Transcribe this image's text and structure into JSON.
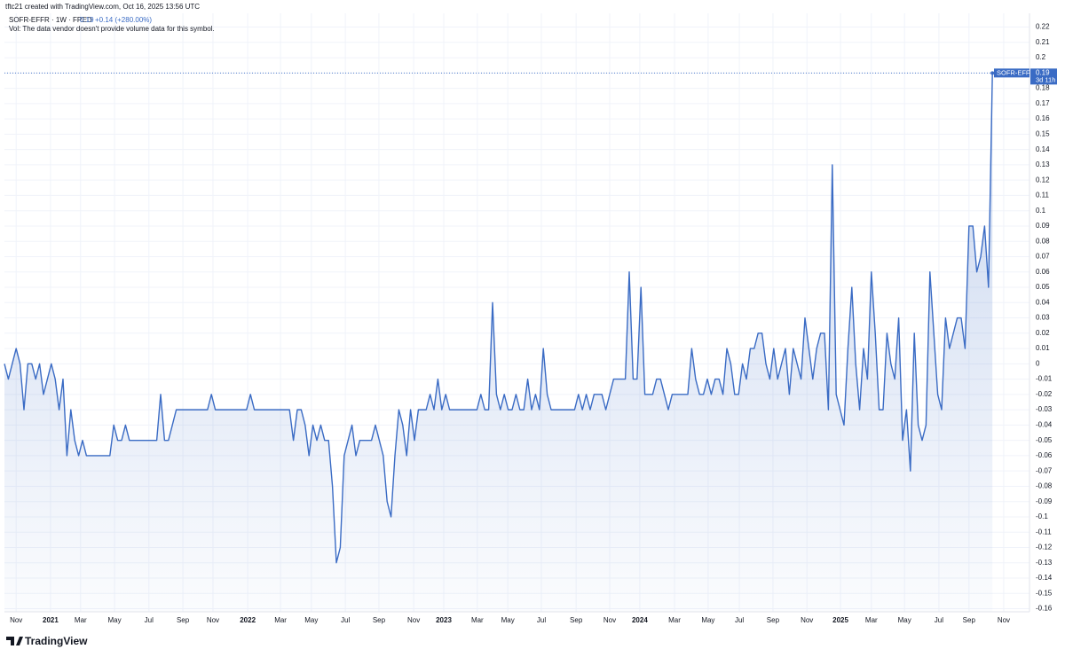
{
  "chart_data": {
    "type": "line",
    "attribution": "tftc21 created with TradingView.com, Oct 16, 2025 13:56 UTC",
    "title": "SOFR-EFFR · 1W · FRED",
    "change": "+0.14 (+280.00%)",
    "note": "Vol: The data vendor doesn't provide volume data for this symbol.",
    "symbol": "SOFR-EFFR",
    "countdown": "3d 11h",
    "brand": "TradingView",
    "color": "#3a6bc4",
    "grid": true,
    "values": [
      0,
      -0.01,
      0,
      0.01,
      0,
      -0.03,
      0,
      0,
      -0.01,
      0,
      -0.02,
      -0.01,
      0,
      -0.01,
      -0.03,
      -0.01,
      -0.06,
      -0.03,
      -0.05,
      -0.06,
      -0.05,
      -0.06,
      -0.06,
      -0.06,
      -0.06,
      -0.06,
      -0.06,
      -0.06,
      -0.04,
      -0.05,
      -0.05,
      -0.04,
      -0.05,
      -0.05,
      -0.05,
      -0.05,
      -0.05,
      -0.05,
      -0.05,
      -0.05,
      -0.02,
      -0.05,
      -0.05,
      -0.04,
      -0.03,
      -0.03,
      -0.03,
      -0.03,
      -0.03,
      -0.03,
      -0.03,
      -0.03,
      -0.03,
      -0.02,
      -0.03,
      -0.03,
      -0.03,
      -0.03,
      -0.03,
      -0.03,
      -0.03,
      -0.03,
      -0.03,
      -0.02,
      -0.03,
      -0.03,
      -0.03,
      -0.03,
      -0.03,
      -0.03,
      -0.03,
      -0.03,
      -0.03,
      -0.03,
      -0.05,
      -0.03,
      -0.03,
      -0.04,
      -0.06,
      -0.04,
      -0.05,
      -0.04,
      -0.05,
      -0.05,
      -0.08,
      -0.13,
      -0.12,
      -0.06,
      -0.05,
      -0.04,
      -0.06,
      -0.05,
      -0.05,
      -0.05,
      -0.05,
      -0.04,
      -0.05,
      -0.06,
      -0.09,
      -0.1,
      -0.06,
      -0.03,
      -0.04,
      -0.06,
      -0.03,
      -0.05,
      -0.03,
      -0.03,
      -0.03,
      -0.02,
      -0.03,
      -0.01,
      -0.03,
      -0.02,
      -0.03,
      -0.03,
      -0.03,
      -0.03,
      -0.03,
      -0.03,
      -0.03,
      -0.03,
      -0.02,
      -0.03,
      -0.03,
      0.04,
      -0.02,
      -0.03,
      -0.02,
      -0.03,
      -0.03,
      -0.02,
      -0.03,
      -0.03,
      -0.01,
      -0.03,
      -0.02,
      -0.03,
      0.01,
      -0.02,
      -0.03,
      -0.03,
      -0.03,
      -0.03,
      -0.03,
      -0.03,
      -0.03,
      -0.02,
      -0.03,
      -0.02,
      -0.03,
      -0.02,
      -0.02,
      -0.02,
      -0.03,
      -0.02,
      -0.01,
      -0.01,
      -0.01,
      -0.01,
      0.06,
      -0.01,
      -0.01,
      0.05,
      -0.02,
      -0.02,
      -0.02,
      -0.01,
      -0.01,
      -0.02,
      -0.03,
      -0.02,
      -0.02,
      -0.02,
      -0.02,
      -0.02,
      0.01,
      -0.01,
      -0.02,
      -0.02,
      -0.01,
      -0.02,
      -0.01,
      -0.01,
      -0.02,
      0.01,
      0,
      -0.02,
      -0.02,
      0,
      -0.01,
      0.01,
      0.01,
      0.02,
      0.02,
      0,
      -0.01,
      0.01,
      -0.01,
      0,
      0.01,
      -0.02,
      0.01,
      0,
      -0.01,
      0.03,
      0.01,
      -0.01,
      0.01,
      0.02,
      0.02,
      -0.03,
      0.13,
      -0.02,
      -0.03,
      -0.04,
      0.01,
      0.05,
      0,
      -0.03,
      0.01,
      -0.01,
      0.06,
      0.02,
      -0.03,
      -0.03,
      0.02,
      0,
      -0.01,
      0.03,
      -0.05,
      -0.03,
      -0.07,
      0.02,
      -0.04,
      -0.05,
      -0.04,
      0.06,
      0.02,
      -0.02,
      -0.03,
      0.03,
      0.01,
      0.02,
      0.03,
      0.03,
      0.01,
      0.09,
      0.09,
      0.06,
      0.07,
      0.09,
      0.05,
      0.19
    ],
    "xlim": [
      0,
      262.5
    ],
    "xticks": [
      {
        "value": 3,
        "label": "Nov"
      },
      {
        "value": 11.8,
        "label": "2021"
      },
      {
        "value": 19.5,
        "label": "Mar"
      },
      {
        "value": 28.2,
        "label": "May"
      },
      {
        "value": 37,
        "label": "Jul"
      },
      {
        "value": 45.7,
        "label": "Sep"
      },
      {
        "value": 53.4,
        "label": "Nov"
      },
      {
        "value": 62.3,
        "label": "2022"
      },
      {
        "value": 70.7,
        "label": "Mar"
      },
      {
        "value": 78.6,
        "label": "May"
      },
      {
        "value": 87.3,
        "label": "Jul"
      },
      {
        "value": 95.9,
        "label": "Sep"
      },
      {
        "value": 104.8,
        "label": "Nov"
      },
      {
        "value": 112.5,
        "label": "2023"
      },
      {
        "value": 121.1,
        "label": "Mar"
      },
      {
        "value": 128.9,
        "label": "May"
      },
      {
        "value": 137.5,
        "label": "Jul"
      },
      {
        "value": 146.4,
        "label": "Sep"
      },
      {
        "value": 155,
        "label": "Nov"
      },
      {
        "value": 162.7,
        "label": "2024"
      },
      {
        "value": 171.6,
        "label": "Mar"
      },
      {
        "value": 180.2,
        "label": "May"
      },
      {
        "value": 188.2,
        "label": "Jul"
      },
      {
        "value": 196.8,
        "label": "Sep"
      },
      {
        "value": 205.5,
        "label": "Nov"
      },
      {
        "value": 214.1,
        "label": "2025"
      },
      {
        "value": 222,
        "label": "Mar"
      },
      {
        "value": 230.5,
        "label": "May"
      },
      {
        "value": 239.3,
        "label": "Jul"
      },
      {
        "value": 247,
        "label": "Sep"
      },
      {
        "value": 255.9,
        "label": "Nov"
      }
    ],
    "ylim": [
      -0.162,
      0.229
    ],
    "yticks": [
      0.22,
      0.21,
      0.2,
      0.19,
      0.18,
      0.17,
      0.16,
      0.15,
      0.14,
      0.13,
      0.12,
      0.11,
      0.1,
      0.09,
      0.08,
      0.07,
      0.06,
      0.05,
      0.04,
      0.03,
      0.02,
      0.01,
      0,
      -0.01,
      -0.02,
      -0.03,
      -0.04,
      -0.05,
      -0.06,
      -0.07,
      -0.08,
      -0.09,
      -0.1,
      -0.11,
      -0.12,
      -0.13,
      -0.14,
      -0.15,
      -0.16
    ]
  }
}
